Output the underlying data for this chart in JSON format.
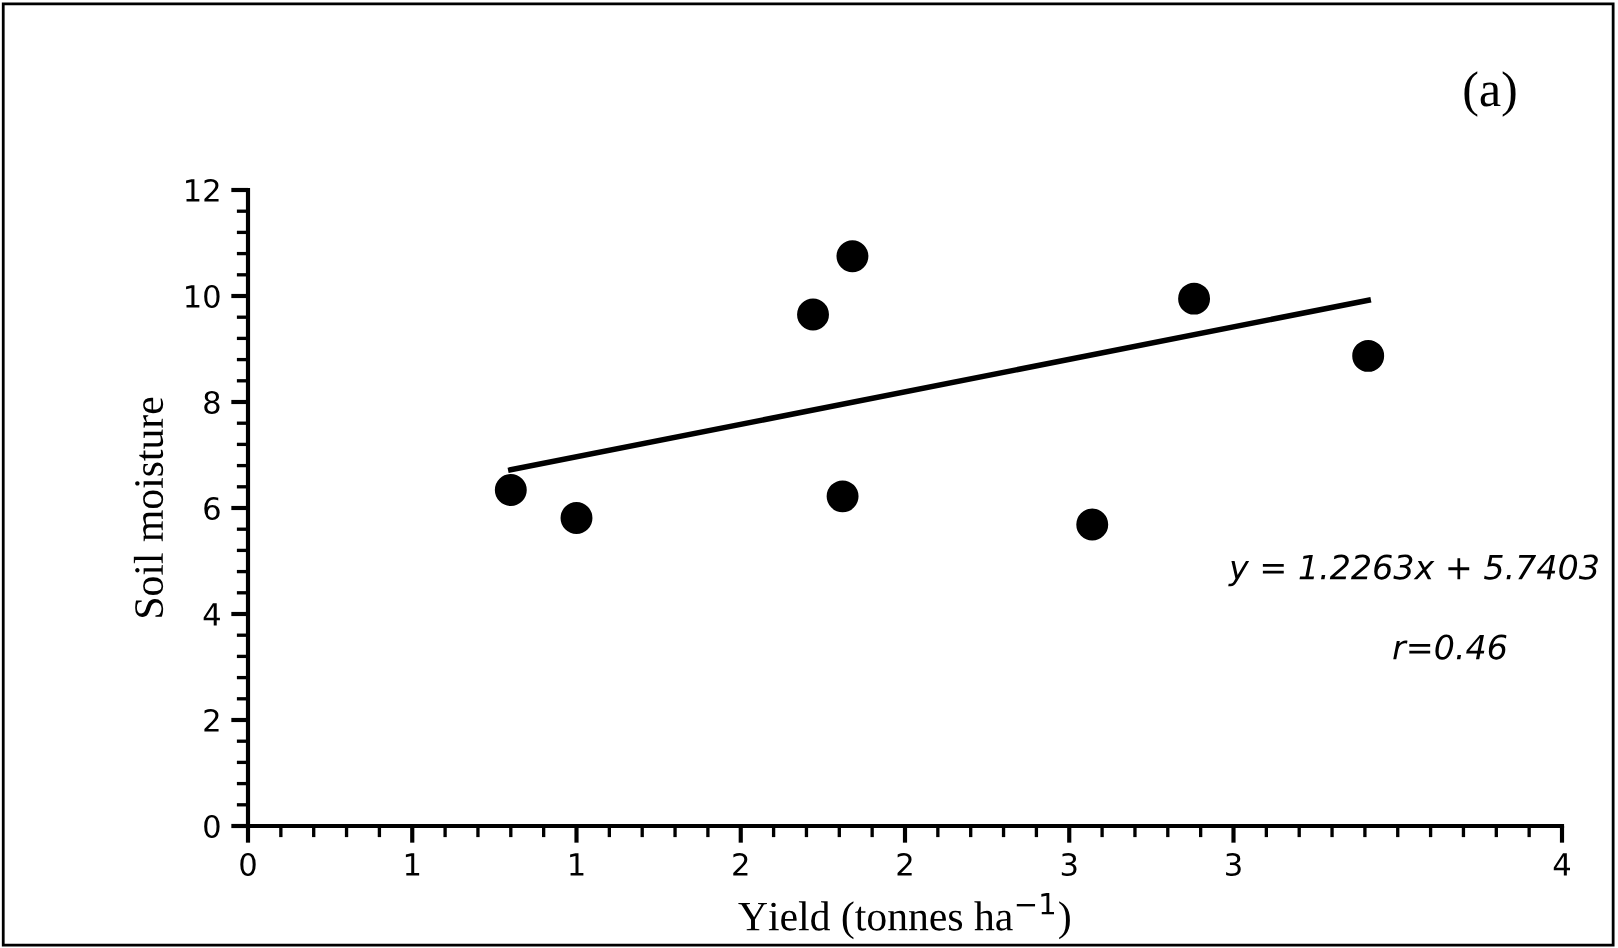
{
  "chart_data": {
    "type": "scatter",
    "xlabel": "Yield (tonnes ha$^{−1}$)",
    "ylabel": "Soil moisture",
    "marker": "circle",
    "grid": false,
    "legend": false,
    "xlim": [
      0,
      4
    ],
    "ylim": [
      0,
      12
    ],
    "xticks": [
      0,
      {
        "value": 0.5,
        "label": "1"
      },
      1,
      {
        "value": 1.5,
        "label": "2"
      },
      2,
      {
        "value": 2.5,
        "label": "3"
      },
      3,
      4
    ],
    "yticks": [
      0,
      2,
      4,
      6,
      8,
      10,
      12
    ],
    "series": [
      {
        "color": "#000000",
        "x": [
          0.8,
          1.0,
          1.72,
          1.84,
          1.81,
          2.57,
          2.88,
          3.41
        ],
        "values": [
          6.34,
          5.81,
          9.65,
          10.75,
          6.22,
          5.69,
          9.95,
          8.87
        ]
      },
      {
        "type": "line",
        "marker": "none",
        "color": "#000000",
        "x": [
          0.8,
          3.41
        ],
        "values": [
          6.72,
          9.92
        ]
      }
    ],
    "annotations": [
      "(a)",
      "y = 1.2263x + 5.7403",
      "r=0.46"
    ]
  }
}
